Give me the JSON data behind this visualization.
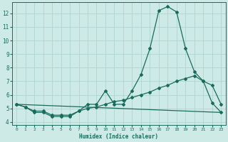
{
  "xlabel": "Humidex (Indice chaleur)",
  "xlim": [
    -0.5,
    23.5
  ],
  "ylim": [
    3.8,
    12.8
  ],
  "yticks": [
    4,
    5,
    6,
    7,
    8,
    9,
    10,
    11,
    12
  ],
  "xticks": [
    0,
    1,
    2,
    3,
    4,
    5,
    6,
    7,
    8,
    9,
    10,
    11,
    12,
    13,
    14,
    15,
    16,
    17,
    18,
    19,
    20,
    21,
    22,
    23
  ],
  "bg_color": "#ceeae6",
  "grid_color": "#aed4d0",
  "line_color": "#1a6b5c",
  "line1_x": [
    0,
    1,
    2,
    3,
    4,
    5,
    6,
    7,
    8,
    9,
    10,
    11,
    12,
    13,
    14,
    15,
    16,
    17,
    18,
    19,
    20,
    21,
    22,
    23
  ],
  "line1_y": [
    5.3,
    5.1,
    4.7,
    4.7,
    4.4,
    4.4,
    4.4,
    4.8,
    5.3,
    5.3,
    6.3,
    5.3,
    5.3,
    6.3,
    7.5,
    9.4,
    12.2,
    12.5,
    12.1,
    9.4,
    7.7,
    7.0,
    6.7,
    5.3
  ],
  "line2_x": [
    0,
    1,
    2,
    3,
    4,
    5,
    6,
    7,
    8,
    9,
    10,
    11,
    12,
    13,
    14,
    15,
    16,
    17,
    18,
    19,
    20,
    21,
    22,
    23
  ],
  "line2_y": [
    5.3,
    5.1,
    4.8,
    4.8,
    4.5,
    4.5,
    4.5,
    4.8,
    5.0,
    5.1,
    5.3,
    5.5,
    5.6,
    5.8,
    6.0,
    6.2,
    6.5,
    6.7,
    7.0,
    7.2,
    7.4,
    7.0,
    5.4,
    4.7
  ],
  "line3_x": [
    0,
    23
  ],
  "line3_y": [
    5.3,
    4.7
  ]
}
